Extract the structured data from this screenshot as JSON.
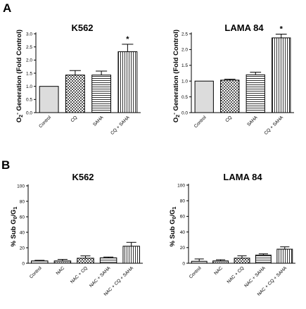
{
  "figure": {
    "panels": [
      {
        "letter": "A"
      },
      {
        "letter": "B"
      }
    ]
  },
  "chart_data": [
    {
      "type": "bar",
      "title": "K562",
      "ylabel": "O2- Generation (Fold Control)",
      "ylim": [
        0,
        3.0
      ],
      "yticks": [
        "0.0",
        "0.5",
        "1.0",
        "1.5",
        "2.0",
        "2.5",
        "3.0"
      ],
      "categories": [
        "Control",
        "CQ",
        "SAHA",
        "CQ + SAHA"
      ],
      "values": [
        1.0,
        1.43,
        1.43,
        2.32
      ],
      "errors": [
        0.0,
        0.17,
        0.15,
        0.28
      ],
      "patterns": [
        "solid",
        "check",
        "hstripe",
        "vstripe"
      ],
      "annotations": [
        "",
        "",
        "",
        "*"
      ]
    },
    {
      "type": "bar",
      "title": "LAMA 84",
      "ylabel": "O2- Generation (Fold Control)",
      "ylim": [
        0,
        2.5
      ],
      "yticks": [
        "0.0",
        "0.5",
        "1.0",
        "1.5",
        "2.0",
        "2.5"
      ],
      "categories": [
        "Control",
        "CQ",
        "SAHA",
        "CQ + SAHA"
      ],
      "values": [
        1.0,
        1.03,
        1.2,
        2.37
      ],
      "errors": [
        0.0,
        0.03,
        0.08,
        0.12
      ],
      "patterns": [
        "solid",
        "check",
        "hstripe",
        "vstripe"
      ],
      "annotations": [
        "",
        "",
        "",
        "*"
      ]
    },
    {
      "type": "bar",
      "title": "K562",
      "ylabel": "% Sub G0/G1",
      "ylim": [
        0,
        100
      ],
      "yticks": [
        "0",
        "20",
        "40",
        "60",
        "80",
        "100"
      ],
      "categories": [
        "Control",
        "NAC",
        "NAC + CQ",
        "NAC + SAHA",
        "NAC + CQ + SAHA"
      ],
      "values": [
        3,
        3,
        6.5,
        7,
        22
      ],
      "errors": [
        0.8,
        2,
        3,
        1,
        5
      ],
      "patterns": [
        "solid",
        "dense",
        "check",
        "hstripe",
        "vstripe"
      ],
      "annotations": [
        "",
        "",
        "",
        "",
        ""
      ]
    },
    {
      "type": "bar",
      "title": "LAMA 84",
      "ylabel": "% Sub G0/G1",
      "ylim": [
        0,
        100
      ],
      "yticks": [
        "0",
        "20",
        "40",
        "60",
        "80",
        "100"
      ],
      "categories": [
        "Control",
        "NAC",
        "NAC + CQ",
        "NAC + SAHA",
        "NAC + CQ + SAHA"
      ],
      "values": [
        2.5,
        3,
        6.5,
        10.5,
        18
      ],
      "errors": [
        3,
        1.5,
        3,
        1.5,
        3
      ],
      "patterns": [
        "solid",
        "dense",
        "check",
        "hstripe",
        "vstripe"
      ],
      "annotations": [
        "",
        "",
        "",
        "",
        ""
      ]
    }
  ]
}
